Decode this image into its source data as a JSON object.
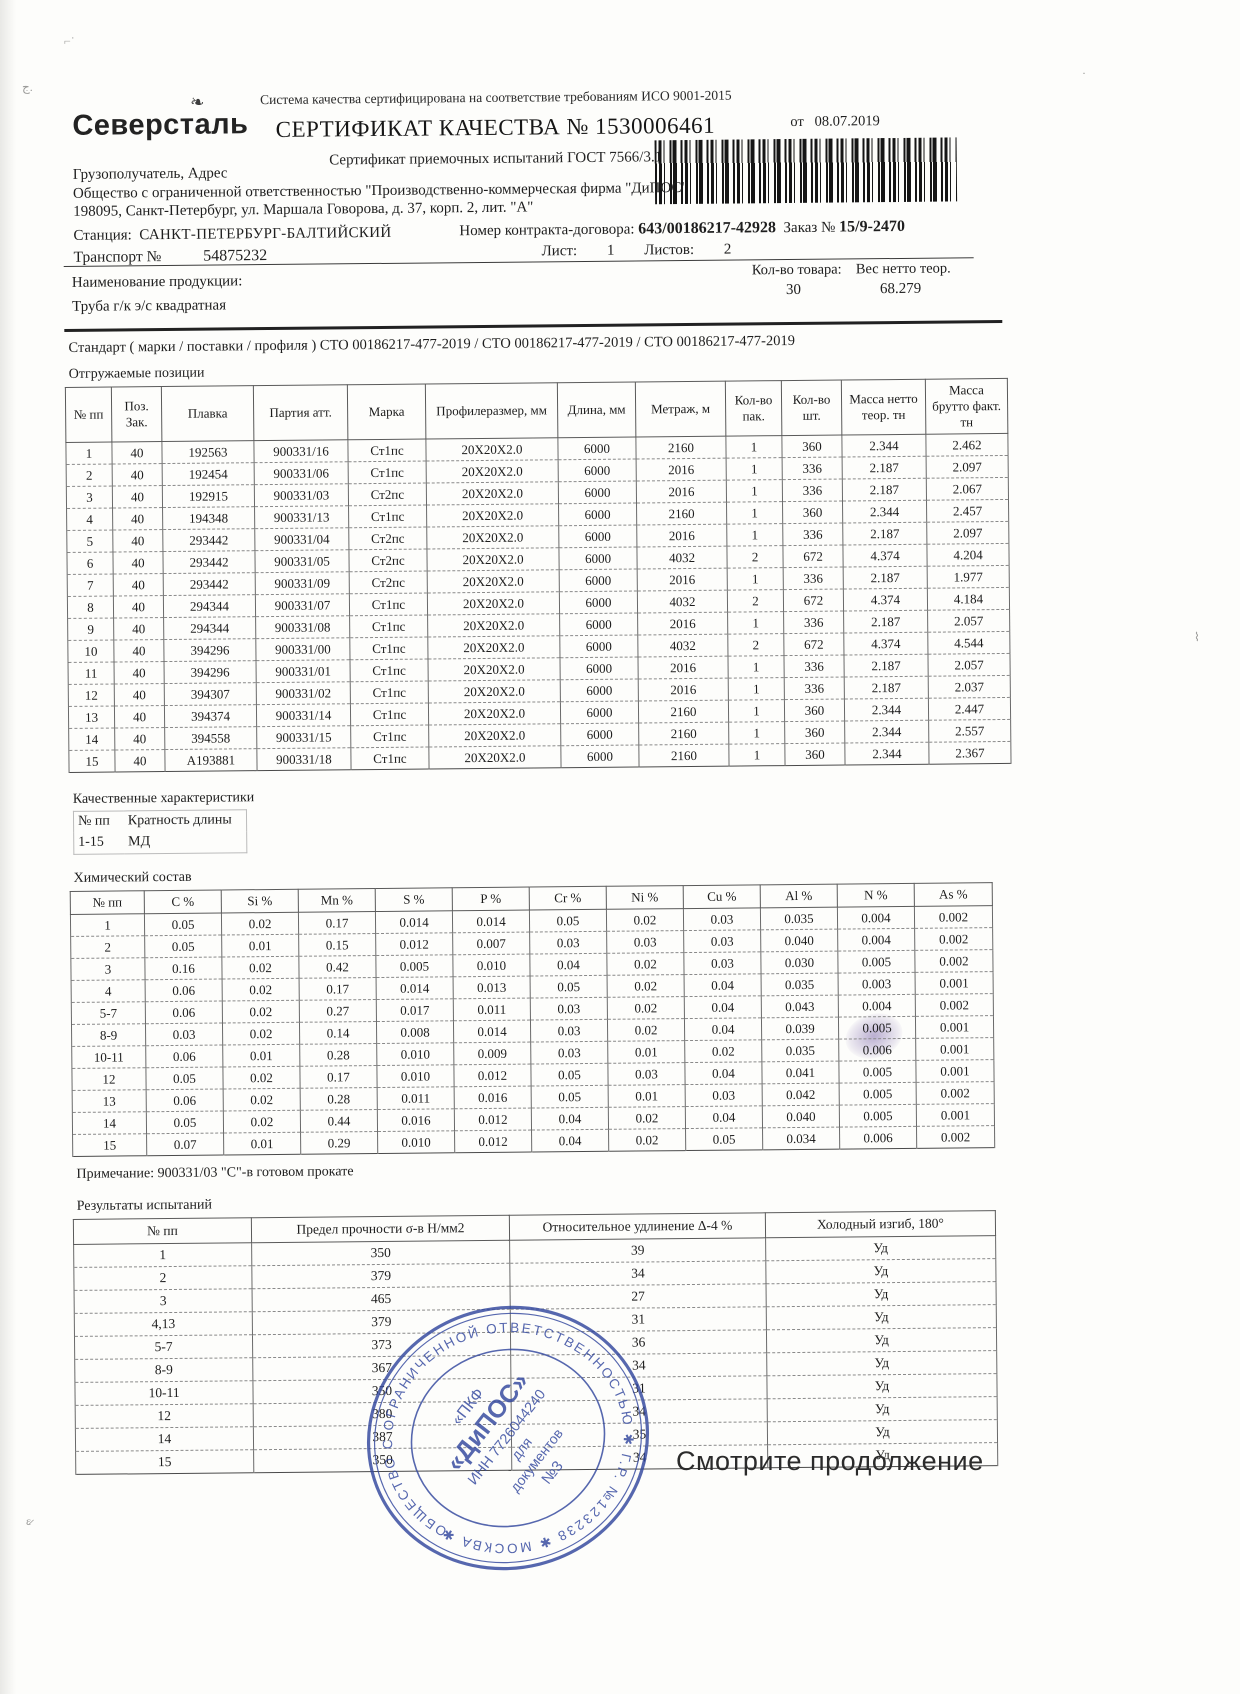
{
  "header": {
    "logo": "Северсталь",
    "iso_line": "Система качества сертифицирована на соответствие требованиям ИСО 9001-2015",
    "title": "СЕРТИФИКАТ КАЧЕСТВА № 1530006461",
    "subtitle": "Сертификат приемочных испытаний ГОСТ 7566/3.1",
    "date_label": "от",
    "date": "08.07.2019"
  },
  "consignee": {
    "label": "Грузополучатель, Адрес",
    "company": "Общество с ограниченной ответственностью \"Производственно-коммерческая фирма \"ДиПОС\"",
    "address": "198095, Санкт-Петербург, ул. Маршала Говорова, д. 37, корп. 2, лит. \"А\"",
    "station_label": "Станция:",
    "station": "САНКТ-ПЕТЕРБУРГ-БАЛТИЙСКИЙ",
    "contract_label": "Номер контракта-договора:",
    "contract": "643/00186217-42928",
    "order_label": "Заказ №",
    "order": "15/9-2470",
    "transport_label": "Транспорт №",
    "transport": "54875232",
    "sheet_label": "Лист:",
    "sheet": "1",
    "sheets_label": "Листов:",
    "sheets": "2"
  },
  "product": {
    "name_label": "Наименование продукции:",
    "name": "Труба г/к э/с квадратная",
    "qty_label": "Кол-во товара:",
    "qty": "30",
    "weight_label": "Вес нетто теор.",
    "weight": "68.279"
  },
  "standard_line": "Стандарт    ( марки / поставки / профиля )  СТО 00186217-477-2019 / СТО 00186217-477-2019 / СТО 00186217-477-2019",
  "shipping": {
    "title": "Отгружаемые позиции",
    "headers": [
      "№ пп",
      "Поз.\nЗак.",
      "Плавка",
      "Партия атт.",
      "Марка",
      "Профилеразмер, мм",
      "Длина, мм",
      "Метраж, м",
      "Кол-во\nпак.",
      "Кол-во\nшт.",
      "Масса нетто\nтеор. тн",
      "Масса\nбрутто факт.\nтн"
    ],
    "rows": [
      [
        "1",
        "40",
        "192563",
        "900331/16",
        "Ст1пс",
        "20X20X2.0",
        "6000",
        "2160",
        "1",
        "360",
        "2.344",
        "2.462"
      ],
      [
        "2",
        "40",
        "192454",
        "900331/06",
        "Ст1пс",
        "20X20X2.0",
        "6000",
        "2016",
        "1",
        "336",
        "2.187",
        "2.097"
      ],
      [
        "3",
        "40",
        "192915",
        "900331/03",
        "Ст2пс",
        "20X20X2.0",
        "6000",
        "2016",
        "1",
        "336",
        "2.187",
        "2.067"
      ],
      [
        "4",
        "40",
        "194348",
        "900331/13",
        "Ст1пс",
        "20X20X2.0",
        "6000",
        "2160",
        "1",
        "360",
        "2.344",
        "2.457"
      ],
      [
        "5",
        "40",
        "293442",
        "900331/04",
        "Ст2пс",
        "20X20X2.0",
        "6000",
        "2016",
        "1",
        "336",
        "2.187",
        "2.097"
      ],
      [
        "6",
        "40",
        "293442",
        "900331/05",
        "Ст2пс",
        "20X20X2.0",
        "6000",
        "4032",
        "2",
        "672",
        "4.374",
        "4.204"
      ],
      [
        "7",
        "40",
        "293442",
        "900331/09",
        "Ст2пс",
        "20X20X2.0",
        "6000",
        "2016",
        "1",
        "336",
        "2.187",
        "1.977"
      ],
      [
        "8",
        "40",
        "294344",
        "900331/07",
        "Ст1пс",
        "20X20X2.0",
        "6000",
        "4032",
        "2",
        "672",
        "4.374",
        "4.184"
      ],
      [
        "9",
        "40",
        "294344",
        "900331/08",
        "Ст1пс",
        "20X20X2.0",
        "6000",
        "2016",
        "1",
        "336",
        "2.187",
        "2.057"
      ],
      [
        "10",
        "40",
        "394296",
        "900331/00",
        "Ст1пс",
        "20X20X2.0",
        "6000",
        "4032",
        "2",
        "672",
        "4.374",
        "4.544"
      ],
      [
        "11",
        "40",
        "394296",
        "900331/01",
        "Ст1пс",
        "20X20X2.0",
        "6000",
        "2016",
        "1",
        "336",
        "2.187",
        "2.057"
      ],
      [
        "12",
        "40",
        "394307",
        "900331/02",
        "Ст1пс",
        "20X20X2.0",
        "6000",
        "2016",
        "1",
        "336",
        "2.187",
        "2.037"
      ],
      [
        "13",
        "40",
        "394374",
        "900331/14",
        "Ст1пс",
        "20X20X2.0",
        "6000",
        "2160",
        "1",
        "360",
        "2.344",
        "2.447"
      ],
      [
        "14",
        "40",
        "394558",
        "900331/15",
        "Ст1пс",
        "20X20X2.0",
        "6000",
        "2160",
        "1",
        "360",
        "2.344",
        "2.557"
      ],
      [
        "15",
        "40",
        "А193881",
        "900331/18",
        "Ст1пс",
        "20X20X2.0",
        "6000",
        "2160",
        "1",
        "360",
        "2.344",
        "2.367"
      ]
    ]
  },
  "quality": {
    "title": "Качественные характеристики",
    "col1_header": "№ пп",
    "col2_header": "Кратность длины",
    "col1_value": "1-15",
    "col2_value": "МД"
  },
  "chemistry": {
    "title": "Химический состав",
    "headers": [
      "№ пп",
      "C %",
      "Si %",
      "Mn %",
      "S %",
      "P %",
      "Cr %",
      "Ni %",
      "Cu %",
      "Al %",
      "N %",
      "As %"
    ],
    "rows": [
      [
        "1",
        "0.05",
        "0.02",
        "0.17",
        "0.014",
        "0.014",
        "0.05",
        "0.02",
        "0.03",
        "0.035",
        "0.004",
        "0.002"
      ],
      [
        "2",
        "0.05",
        "0.01",
        "0.15",
        "0.012",
        "0.007",
        "0.03",
        "0.03",
        "0.03",
        "0.040",
        "0.004",
        "0.002"
      ],
      [
        "3",
        "0.16",
        "0.02",
        "0.42",
        "0.005",
        "0.010",
        "0.04",
        "0.02",
        "0.03",
        "0.030",
        "0.005",
        "0.002"
      ],
      [
        "4",
        "0.06",
        "0.02",
        "0.17",
        "0.014",
        "0.013",
        "0.05",
        "0.02",
        "0.04",
        "0.035",
        "0.003",
        "0.001"
      ],
      [
        "5-7",
        "0.06",
        "0.02",
        "0.27",
        "0.017",
        "0.011",
        "0.03",
        "0.02",
        "0.04",
        "0.043",
        "0.004",
        "0.002"
      ],
      [
        "8-9",
        "0.03",
        "0.02",
        "0.14",
        "0.008",
        "0.014",
        "0.03",
        "0.02",
        "0.04",
        "0.039",
        "0.005",
        "0.001"
      ],
      [
        "10-11",
        "0.06",
        "0.01",
        "0.28",
        "0.010",
        "0.009",
        "0.03",
        "0.01",
        "0.02",
        "0.035",
        "0.006",
        "0.001"
      ],
      [
        "12",
        "0.05",
        "0.02",
        "0.17",
        "0.010",
        "0.012",
        "0.05",
        "0.03",
        "0.04",
        "0.041",
        "0.005",
        "0.001"
      ],
      [
        "13",
        "0.06",
        "0.02",
        "0.28",
        "0.011",
        "0.016",
        "0.05",
        "0.01",
        "0.03",
        "0.042",
        "0.005",
        "0.002"
      ],
      [
        "14",
        "0.05",
        "0.02",
        "0.44",
        "0.016",
        "0.012",
        "0.04",
        "0.02",
        "0.04",
        "0.040",
        "0.005",
        "0.001"
      ],
      [
        "15",
        "0.07",
        "0.01",
        "0.29",
        "0.010",
        "0.012",
        "0.04",
        "0.02",
        "0.05",
        "0.034",
        "0.006",
        "0.002"
      ]
    ]
  },
  "note": "Примечание: 900331/03 \"С\"-в готовом прокате",
  "results": {
    "title": "Результаты испытаний",
    "headers": [
      "№ пп",
      "Предел прочности σ-в Н/мм2",
      "Относительное удлинение Δ-4 %",
      "Холодный изгиб, 180°"
    ],
    "rows": [
      [
        "1",
        "350",
        "39",
        "Уд"
      ],
      [
        "2",
        "379",
        "34",
        "Уд"
      ],
      [
        "3",
        "465",
        "27",
        "Уд"
      ],
      [
        "4,13",
        "379",
        "31",
        "Уд"
      ],
      [
        "5-7",
        "373",
        "36",
        "Уд"
      ],
      [
        "8-9",
        "367",
        "34",
        "Уд"
      ],
      [
        "10-11",
        "350",
        "31",
        "Уд"
      ],
      [
        "12",
        "380",
        "34",
        "Уд"
      ],
      [
        "14",
        "387",
        "35",
        "Уд"
      ],
      [
        "15",
        "350",
        "34",
        "Уд"
      ]
    ]
  },
  "stamp": {
    "ring_text": "ОБЩЕСТВО С ОГРАНИЧЕННОЙ ОТВЕТСТВЕННОСТЬЮ ✱ Г.Р. №123238 ✱ МОСКВА ✱",
    "center_line1": "«ПКФ",
    "center_line2": "«ДиПОС»",
    "center_line3": "ИНН 7726044240",
    "center_line4": "для",
    "center_line5": "документов",
    "center_line6": "№3",
    "color": "#32479e"
  },
  "footer": {
    "continuation": "Смотрите продолжение"
  }
}
